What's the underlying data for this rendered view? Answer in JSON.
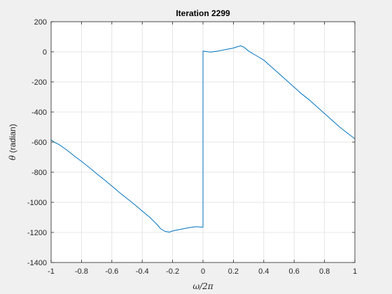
{
  "chart_data": {
    "type": "line",
    "title": "Iteration 2299",
    "xlabel": "ω/2π",
    "ylabel_symbol": "θ",
    "ylabel_unit": " (radian)",
    "xlim": [
      -1,
      1
    ],
    "ylim": [
      -1400,
      200
    ],
    "xticks": [
      -1,
      -0.8,
      -0.6,
      -0.4,
      -0.2,
      0,
      0.2,
      0.4,
      0.6,
      0.8,
      1
    ],
    "xtick_labels": [
      "-1",
      "-0.8",
      "-0.6",
      "-0.4",
      "-0.2",
      "0",
      "0.2",
      "0.4",
      "0.6",
      "0.8",
      "1"
    ],
    "yticks": [
      -1400,
      -1200,
      -1000,
      -800,
      -600,
      -400,
      -200,
      0,
      200
    ],
    "ytick_labels": [
      "-1400",
      "-1200",
      "-1000",
      "-800",
      "-600",
      "-400",
      "-200",
      "0",
      "200"
    ],
    "grid": true,
    "series": [
      {
        "color": "#0072bd",
        "x": [
          -1.0,
          -0.98,
          -0.95,
          -0.9,
          -0.85,
          -0.8,
          -0.75,
          -0.7,
          -0.65,
          -0.6,
          -0.55,
          -0.5,
          -0.45,
          -0.4,
          -0.35,
          -0.32,
          -0.3,
          -0.28,
          -0.25,
          -0.22,
          -0.2,
          -0.15,
          -0.1,
          -0.05,
          0.0,
          0.0,
          0.02,
          0.05,
          0.1,
          0.15,
          0.2,
          0.23,
          0.25,
          0.27,
          0.3,
          0.35,
          0.4,
          0.45,
          0.5,
          0.55,
          0.6,
          0.65,
          0.7,
          0.75,
          0.8,
          0.85,
          0.9,
          0.95,
          1.0
        ],
        "y": [
          -585,
          -600,
          -615,
          -650,
          -690,
          -728,
          -768,
          -810,
          -850,
          -892,
          -935,
          -975,
          -1015,
          -1058,
          -1100,
          -1130,
          -1150,
          -1175,
          -1193,
          -1198,
          -1190,
          -1180,
          -1170,
          -1162,
          -1165,
          5,
          2,
          -2,
          5,
          15,
          25,
          35,
          40,
          30,
          5,
          -25,
          -55,
          -100,
          -145,
          -190,
          -235,
          -280,
          -320,
          -365,
          -410,
          -455,
          -500,
          -540,
          -578
        ]
      }
    ]
  }
}
